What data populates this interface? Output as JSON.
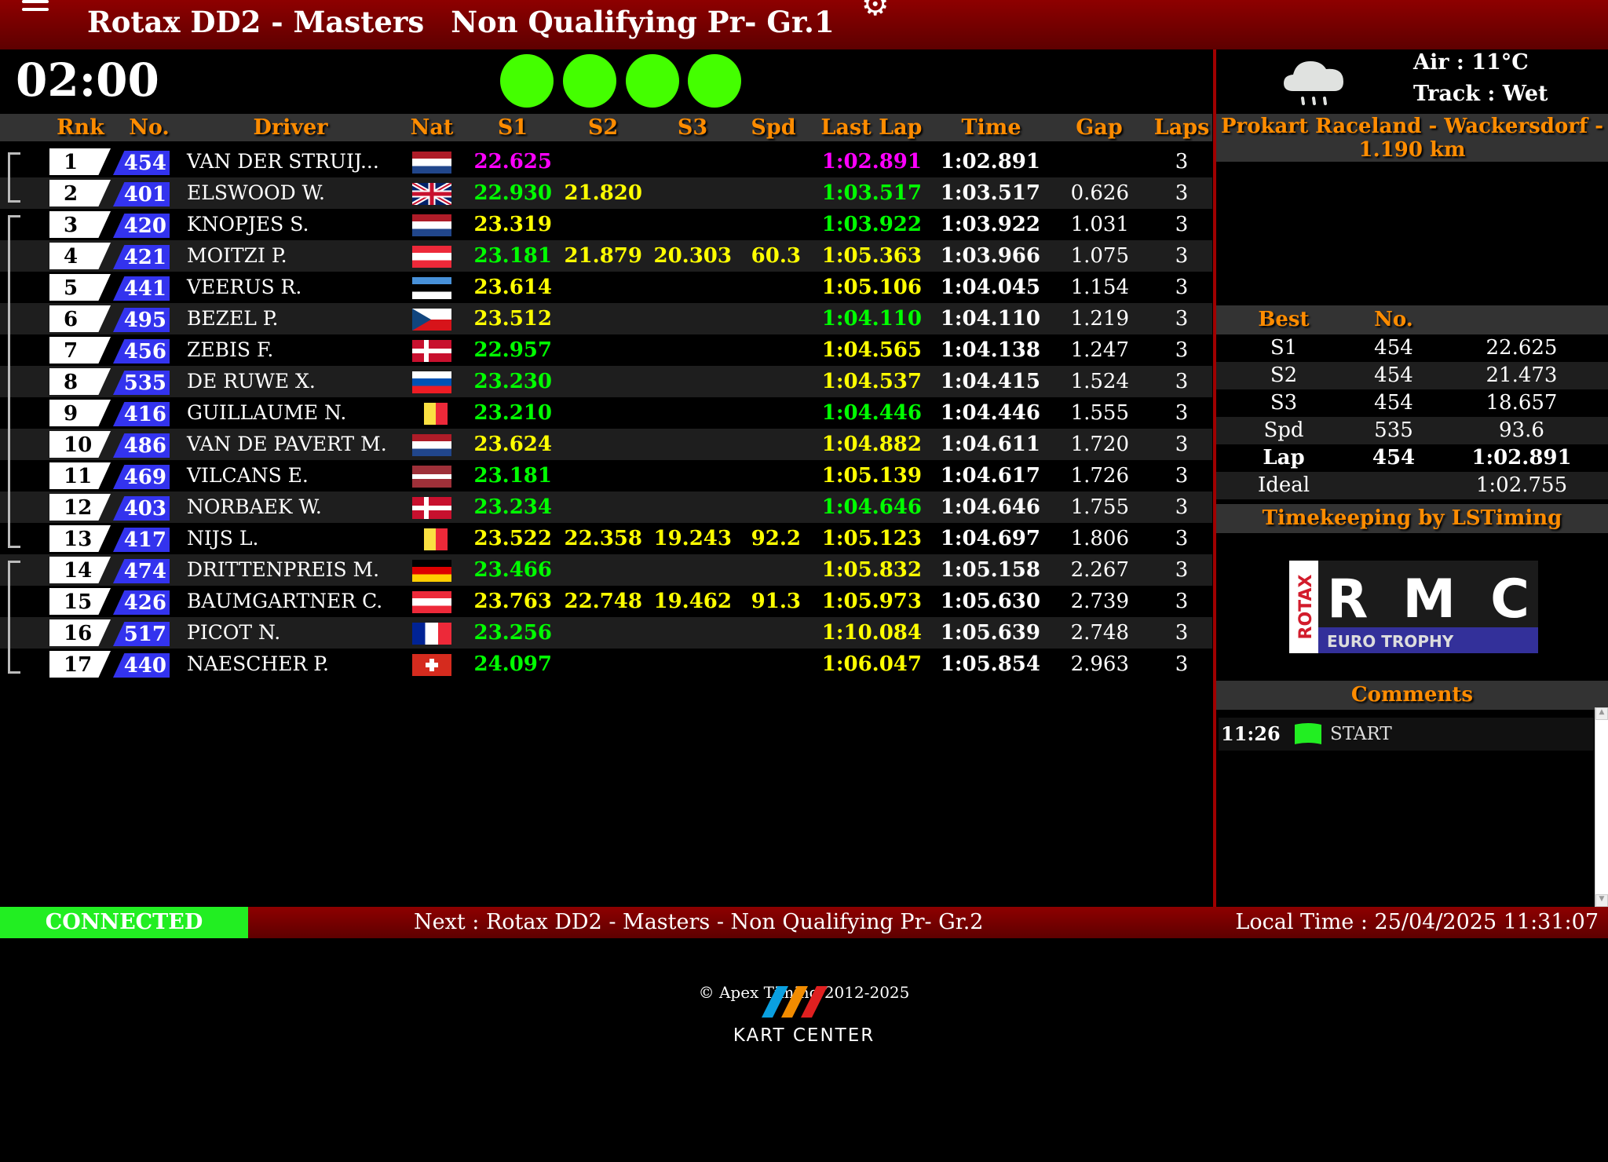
{
  "header": {
    "event": "Rotax DD2 - Masters",
    "session": "Non Qualifying Pr- Gr.1",
    "menu_icon": "hamburger-icon",
    "settings_icon": "gear-icon"
  },
  "timer": "02:00",
  "lights": {
    "count": 4,
    "color": "#44ff00"
  },
  "columns": [
    "Rnk",
    "No.",
    "Driver",
    "Nat",
    "S1",
    "S2",
    "S3",
    "Spd",
    "Last Lap",
    "Time",
    "Gap",
    "Laps"
  ],
  "colors": {
    "best_overall": "#ff00ff",
    "personal_best": "#00ff00",
    "normal": "#ffff00",
    "accent": "#ff8c00",
    "connected": "#22ee22"
  },
  "rows": [
    {
      "rank": "1",
      "no": "454",
      "driver": "VAN DER STRUIJ...",
      "nat": "NL",
      "s1": "22.625",
      "s1c": "best_overall",
      "s2": "",
      "s3": "",
      "spd": "",
      "last": "1:02.891",
      "lastc": "best_overall",
      "time": "1:02.891",
      "gap": "",
      "laps": "3"
    },
    {
      "rank": "2",
      "no": "401",
      "driver": "ELSWOOD W.",
      "nat": "GB",
      "s1": "22.930",
      "s1c": "personal_best",
      "s2": "21.820",
      "s3": "",
      "spd": "",
      "last": "1:03.517",
      "lastc": "personal_best",
      "time": "1:03.517",
      "gap": "0.626",
      "laps": "3"
    },
    {
      "rank": "3",
      "no": "420",
      "driver": "KNOPJES S.",
      "nat": "NL",
      "s1": "23.319",
      "s1c": "normal",
      "s2": "",
      "s3": "",
      "spd": "",
      "last": "1:03.922",
      "lastc": "personal_best",
      "time": "1:03.922",
      "gap": "1.031",
      "laps": "3"
    },
    {
      "rank": "4",
      "no": "421",
      "driver": "MOITZI P.",
      "nat": "AT",
      "s1": "23.181",
      "s1c": "personal_best",
      "s2": "21.879",
      "s3": "20.303",
      "spd": "60.3",
      "last": "1:05.363",
      "lastc": "normal",
      "time": "1:03.966",
      "gap": "1.075",
      "laps": "3"
    },
    {
      "rank": "5",
      "no": "441",
      "driver": "VEERUS R.",
      "nat": "EE",
      "s1": "23.614",
      "s1c": "normal",
      "s2": "",
      "s3": "",
      "spd": "",
      "last": "1:05.106",
      "lastc": "normal",
      "time": "1:04.045",
      "gap": "1.154",
      "laps": "3"
    },
    {
      "rank": "6",
      "no": "495",
      "driver": "BEZEL P.",
      "nat": "CZ",
      "s1": "23.512",
      "s1c": "normal",
      "s2": "",
      "s3": "",
      "spd": "",
      "last": "1:04.110",
      "lastc": "personal_best",
      "time": "1:04.110",
      "gap": "1.219",
      "laps": "3"
    },
    {
      "rank": "7",
      "no": "456",
      "driver": "ZEBIS F.",
      "nat": "DK",
      "s1": "22.957",
      "s1c": "personal_best",
      "s2": "",
      "s3": "",
      "spd": "",
      "last": "1:04.565",
      "lastc": "normal",
      "time": "1:04.138",
      "gap": "1.247",
      "laps": "3"
    },
    {
      "rank": "8",
      "no": "535",
      "driver": "DE RUWE X.",
      "nat": "SI",
      "s1": "23.230",
      "s1c": "personal_best",
      "s2": "",
      "s3": "",
      "spd": "",
      "last": "1:04.537",
      "lastc": "normal",
      "time": "1:04.415",
      "gap": "1.524",
      "laps": "3"
    },
    {
      "rank": "9",
      "no": "416",
      "driver": "GUILLAUME N.",
      "nat": "BE",
      "s1": "23.210",
      "s1c": "personal_best",
      "s2": "",
      "s3": "",
      "spd": "",
      "last": "1:04.446",
      "lastc": "personal_best",
      "time": "1:04.446",
      "gap": "1.555",
      "laps": "3"
    },
    {
      "rank": "10",
      "no": "486",
      "driver": "VAN DE PAVERT M.",
      "nat": "NL",
      "s1": "23.624",
      "s1c": "normal",
      "s2": "",
      "s3": "",
      "spd": "",
      "last": "1:04.882",
      "lastc": "normal",
      "time": "1:04.611",
      "gap": "1.720",
      "laps": "3"
    },
    {
      "rank": "11",
      "no": "469",
      "driver": "VILCANS E.",
      "nat": "LV",
      "s1": "23.181",
      "s1c": "personal_best",
      "s2": "",
      "s3": "",
      "spd": "",
      "last": "1:05.139",
      "lastc": "normal",
      "time": "1:04.617",
      "gap": "1.726",
      "laps": "3"
    },
    {
      "rank": "12",
      "no": "403",
      "driver": "NORBAEK W.",
      "nat": "DK",
      "s1": "23.234",
      "s1c": "personal_best",
      "s2": "",
      "s3": "",
      "spd": "",
      "last": "1:04.646",
      "lastc": "personal_best",
      "time": "1:04.646",
      "gap": "1.755",
      "laps": "3"
    },
    {
      "rank": "13",
      "no": "417",
      "driver": "NIJS L.",
      "nat": "BE",
      "s1": "23.522",
      "s1c": "normal",
      "s2": "22.358",
      "s3": "19.243",
      "spd": "92.2",
      "last": "1:05.123",
      "lastc": "normal",
      "time": "1:04.697",
      "gap": "1.806",
      "laps": "3"
    },
    {
      "rank": "14",
      "no": "474",
      "driver": "DRITTENPREIS M.",
      "nat": "DE",
      "s1": "23.466",
      "s1c": "personal_best",
      "s2": "",
      "s3": "",
      "spd": "",
      "last": "1:05.832",
      "lastc": "normal",
      "time": "1:05.158",
      "gap": "2.267",
      "laps": "3"
    },
    {
      "rank": "15",
      "no": "426",
      "driver": "BAUMGARTNER C.",
      "nat": "AT",
      "s1": "23.763",
      "s1c": "normal",
      "s2": "22.748",
      "s3": "19.462",
      "spd": "91.3",
      "last": "1:05.973",
      "lastc": "normal",
      "time": "1:05.630",
      "gap": "2.739",
      "laps": "3"
    },
    {
      "rank": "16",
      "no": "517",
      "driver": "PICOT N.",
      "nat": "FR",
      "s1": "23.256",
      "s1c": "personal_best",
      "s2": "",
      "s3": "",
      "spd": "",
      "last": "1:10.084",
      "lastc": "normal",
      "time": "1:05.639",
      "gap": "2.748",
      "laps": "3"
    },
    {
      "rank": "17",
      "no": "440",
      "driver": "NAESCHER P.",
      "nat": "CH",
      "s1": "24.097",
      "s1c": "personal_best",
      "s2": "",
      "s3": "",
      "spd": "",
      "last": "1:06.047",
      "lastc": "normal",
      "time": "1:05.854",
      "gap": "2.963",
      "laps": "3"
    }
  ],
  "groups": [
    [
      1,
      2
    ],
    [
      3,
      13
    ],
    [
      14,
      17
    ]
  ],
  "weather": {
    "icon": "rain-cloud-icon",
    "air": "Air : 11°C",
    "track": "Track : Wet"
  },
  "track_name": "Prokart Raceland - Wackersdorf - 1.190 km",
  "best": {
    "headers": [
      "Best",
      "No."
    ],
    "rows": [
      {
        "label": "S1",
        "no": "454",
        "value": "22.625"
      },
      {
        "label": "S2",
        "no": "454",
        "value": "21.473"
      },
      {
        "label": "S3",
        "no": "454",
        "value": "18.657"
      },
      {
        "label": "Spd",
        "no": "535",
        "value": "93.6"
      },
      {
        "label": "Lap",
        "no": "454",
        "value": "1:02.891",
        "bold": true
      },
      {
        "label": "Ideal",
        "no": "",
        "value": "1:02.755"
      }
    ]
  },
  "timekeeping": "Timekeeping by LSTiming",
  "logo": {
    "brand": "ROTAX",
    "name": "RMC",
    "sub": "EURO TROPHY"
  },
  "comments": {
    "title": "Comments",
    "items": [
      {
        "time": "11:26",
        "flag": "green-flag-icon",
        "text": "START"
      }
    ]
  },
  "footer": {
    "status": "CONNECTED",
    "next": "Next : Rotax DD2 - Masters - Non Qualifying Pr- Gr.2",
    "local_time": "Local Time : 25/04/2025 11:31:07"
  },
  "copyright": "© Apex Timing 2012-2025",
  "kart_center": "KART CENTER"
}
